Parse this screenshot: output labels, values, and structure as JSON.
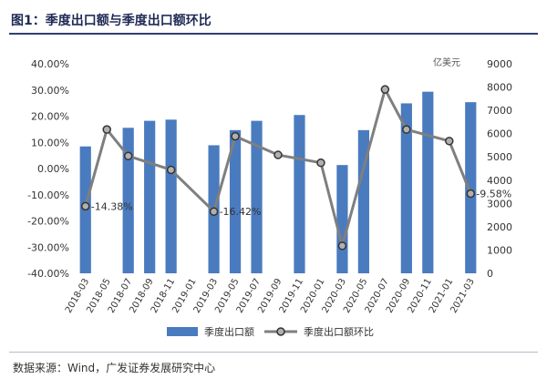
{
  "header": {
    "title": "图1：季度出口额与季度出口额环比"
  },
  "footer": {
    "source": "数据来源：Wind，广发证券发展研究中心"
  },
  "colors": {
    "bar": "#4a7bbf",
    "line": "#7f7f7f",
    "marker_fill": "#b0b0b0",
    "grid": "#d9d9d9",
    "title_rule": "#2f3f73"
  },
  "chart_data": {
    "type": "bar+line",
    "categories": [
      "2018-03",
      "2018-05",
      "2018-07",
      "2018-09",
      "2018-11",
      "2019-01",
      "2019-03",
      "2019-05",
      "2019-07",
      "2019-09",
      "2019-11",
      "2020-01",
      "2020-03",
      "2020-05",
      "2020-07",
      "2020-09",
      "2020-11",
      "2021-01",
      "2021-03"
    ],
    "right_axis_unit": "亿美元",
    "series": [
      {
        "name": "季度出口额",
        "type": "bar",
        "axis": "right",
        "values": [
          5450,
          null,
          6250,
          6550,
          6600,
          null,
          5500,
          6150,
          6550,
          null,
          6800,
          null,
          4650,
          6150,
          null,
          7300,
          7800,
          null,
          7350
        ]
      },
      {
        "name": "季度出口额环比",
        "type": "line",
        "axis": "left",
        "values": [
          -14.38,
          14.9,
          4.8,
          null,
          -0.5,
          null,
          -16.42,
          12.3,
          null,
          5.2,
          null,
          2.2,
          -29.5,
          null,
          30.2,
          14.9,
          null,
          10.5,
          -9.58
        ]
      }
    ],
    "left_axis": {
      "min": -40,
      "max": 40,
      "step": 10,
      "tick_labels": [
        "40.00%",
        "30.00%",
        "20.00%",
        "10.00%",
        "0.00%",
        "-10.00%",
        "-20.00%",
        "-30.00%",
        "-40.00%"
      ]
    },
    "right_axis": {
      "min": 0,
      "max": 9000,
      "step": 1000,
      "tick_labels": [
        "9000",
        "8000",
        "7000",
        "6000",
        "5000",
        "4000",
        "3000",
        "2000",
        "1000",
        "0"
      ]
    },
    "annotations": [
      {
        "text": "-14.38%",
        "category": "2018-03",
        "value": -14.38
      },
      {
        "text": "-16.42%",
        "category": "2019-03",
        "value": -16.42
      },
      {
        "text": "-9.58%",
        "category": "2021-03",
        "value": -9.58
      }
    ],
    "grid": false,
    "legend_position": "bottom"
  }
}
